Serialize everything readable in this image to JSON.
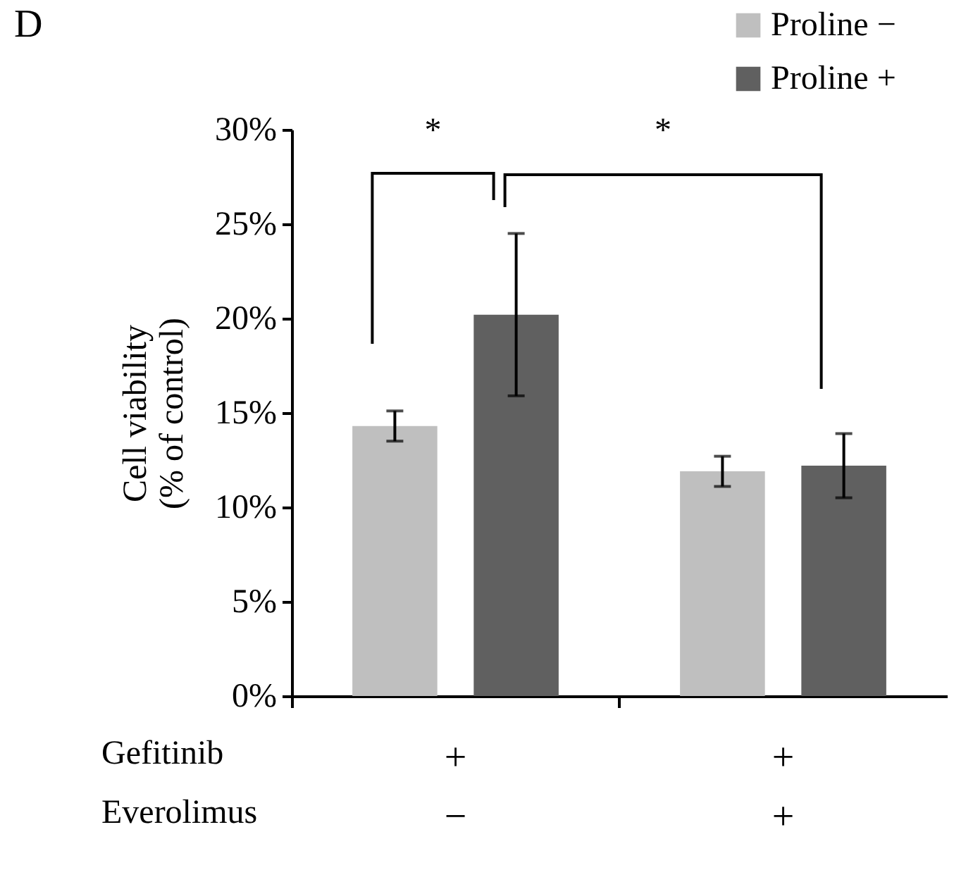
{
  "chart_data": {
    "type": "bar",
    "title": "D",
    "ylabel": "Cell viability\n(% of control)",
    "categories": [
      "+\n−",
      "+\n+"
    ],
    "series": [
      {
        "name": "Proline −",
        "color": "#bfbfbf",
        "values": [
          14.3,
          11.9
        ],
        "errors": [
          0.8,
          0.8
        ]
      },
      {
        "name": "Proline +",
        "color": "#606060",
        "values": [
          20.2,
          12.2
        ],
        "errors": [
          4.3,
          1.7
        ]
      }
    ],
    "ylim": [
      0,
      30
    ],
    "yticks": [
      {
        "value": 0,
        "label": "0%"
      },
      {
        "value": 5,
        "label": "5%"
      },
      {
        "value": 10,
        "label": "10%"
      },
      {
        "value": 15,
        "label": "15%"
      },
      {
        "value": 20,
        "label": "20%"
      },
      {
        "value": 25,
        "label": "25%"
      },
      {
        "value": 30,
        "label": "30%"
      }
    ],
    "legend": "top right",
    "grid": false,
    "annotations": [
      "*",
      "*",
      "Gefitinib",
      "Everolimus"
    ]
  }
}
